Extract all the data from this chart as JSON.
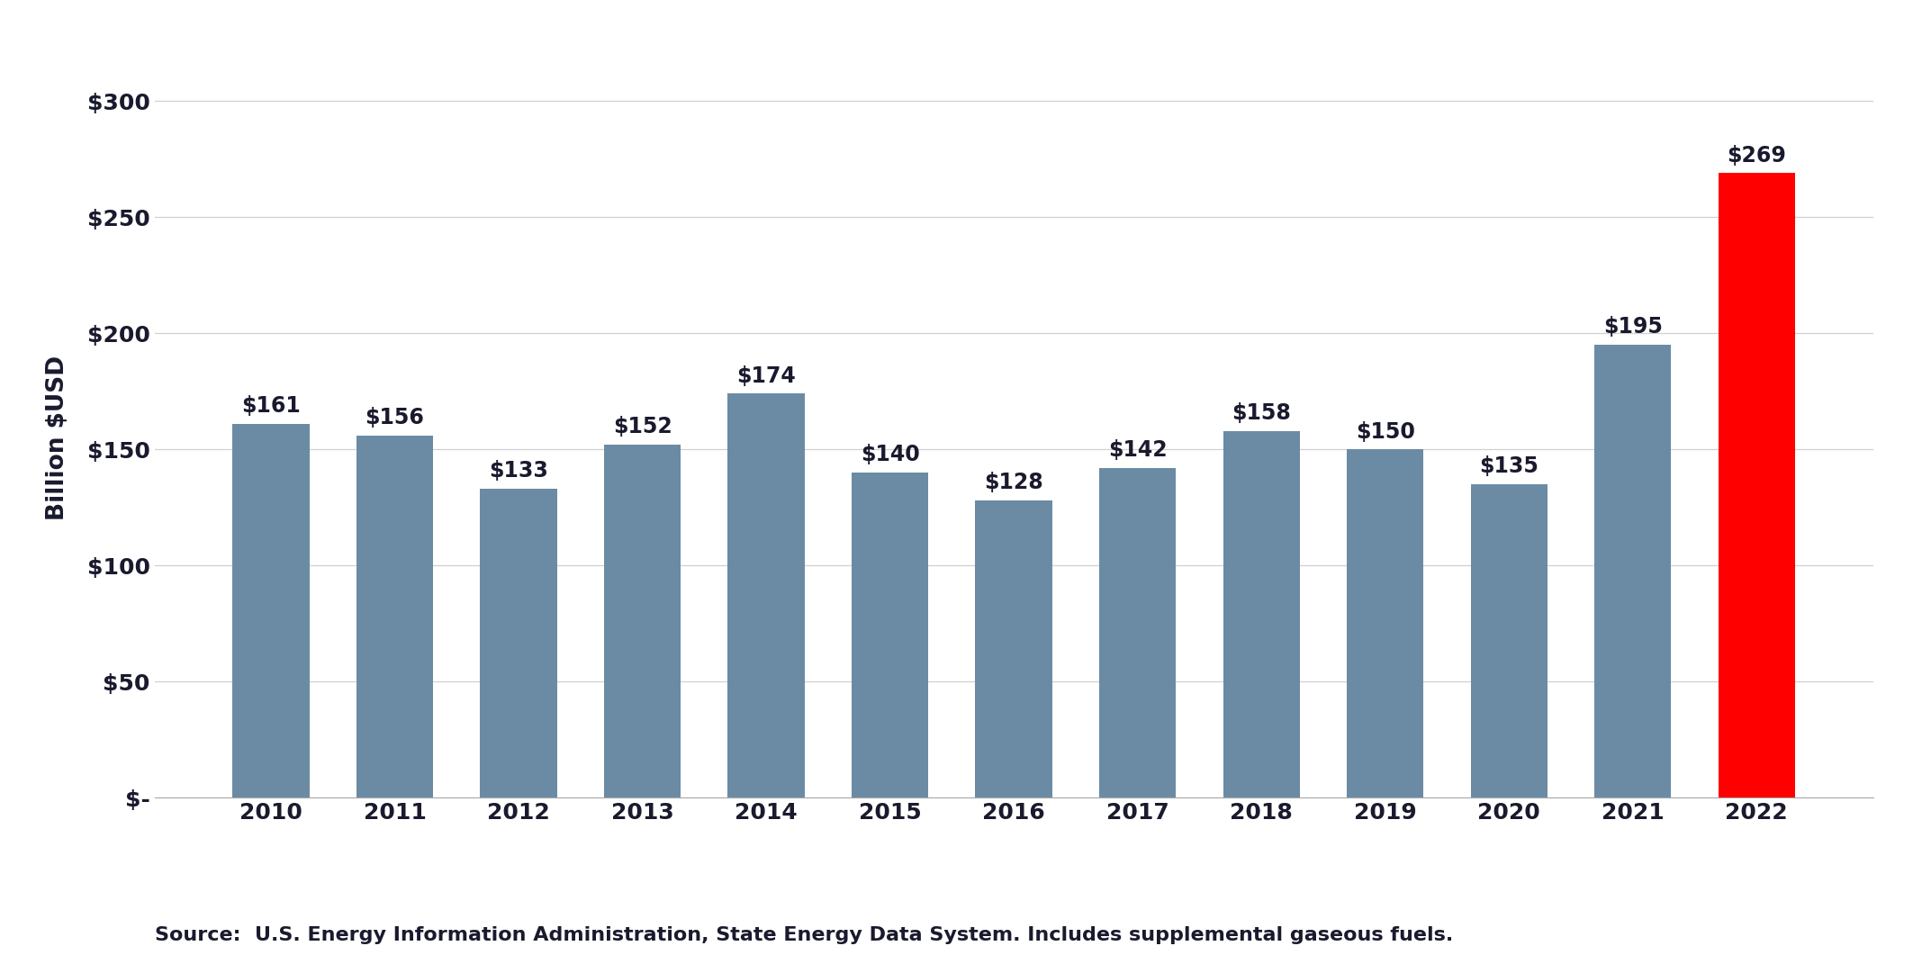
{
  "categories": [
    "2010",
    "2011",
    "2012",
    "2013",
    "2014",
    "2015",
    "2016",
    "2017",
    "2018",
    "2019",
    "2020",
    "2021",
    "2022"
  ],
  "values": [
    161,
    156,
    133,
    152,
    174,
    140,
    128,
    142,
    158,
    150,
    135,
    195,
    269
  ],
  "bar_colors": [
    "#6b8ba4",
    "#6b8ba4",
    "#6b8ba4",
    "#6b8ba4",
    "#6b8ba4",
    "#6b8ba4",
    "#6b8ba4",
    "#6b8ba4",
    "#6b8ba4",
    "#6b8ba4",
    "#6b8ba4",
    "#6b8ba4",
    "#ff0000"
  ],
  "ylabel": "Billion $USD",
  "ylim": [
    0,
    310
  ],
  "yticks": [
    0,
    50,
    100,
    150,
    200,
    250,
    300
  ],
  "ytick_labels": [
    "$-",
    "$50",
    "$100",
    "$150",
    "$200",
    "$250",
    "$300"
  ],
  "source_text": "Source:  U.S. Energy Information Administration, State Energy Data System. Includes supplemental gaseous fuels.",
  "tick_fontsize": 18,
  "ylabel_fontsize": 19,
  "source_fontsize": 16,
  "bar_label_fontsize": 17,
  "background_color": "#ffffff",
  "grid_color": "#d0d0d0"
}
